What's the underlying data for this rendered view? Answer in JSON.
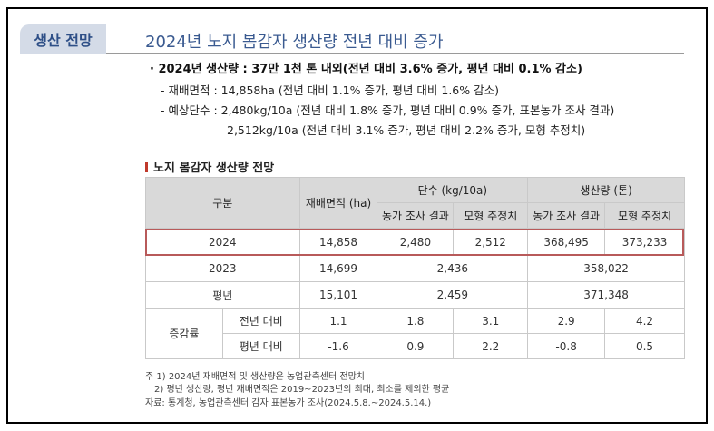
{
  "header": {
    "tag": "생산 전망",
    "title": "2024년 노지 봄감자 생산량 전년 대비 증가"
  },
  "summary": {
    "headline": "· 2024년 생산량 : 37만 1천 톤 내외(전년 대비 3.6% 증가, 평년 대비 0.1% 감소)",
    "area": "- 재배면적 : 14,858ha (전년 대비 1.1% 증가, 평년 대비 1.6% 감소)",
    "yield1": "- 예상단수 : 2,480kg/10a (전년 대비 1.8% 증가, 평년 대비 0.9% 증가, 표본농가 조사 결과)",
    "yield2": "2,512kg/10a (전년 대비 3.1% 증가, 평년 대비 2.2% 증가, 모형 추정치)"
  },
  "section_title": "노지 봄감자 생산량 전망",
  "table": {
    "h_category": "구분",
    "h_area": "재배면적 (ha)",
    "h_yield": "단수 (kg/10a)",
    "h_prod": "생산량 (톤)",
    "h_survey": "농가 조사 결과",
    "h_model": "모형 추정치",
    "r2024": {
      "label": "2024",
      "area": "14,858",
      "y_survey": "2,480",
      "y_model": "2,512",
      "p_survey": "368,495",
      "p_model": "373,233"
    },
    "r2023": {
      "label": "2023",
      "area": "14,699",
      "yield": "2,436",
      "prod": "358,022"
    },
    "avg": {
      "label": "평년",
      "area": "15,101",
      "yield": "2,459",
      "prod": "371,348"
    },
    "change": {
      "label": "증감률",
      "prev": {
        "label": "전년 대비",
        "area": "1.1",
        "y_survey": "1.8",
        "y_model": "3.1",
        "p_survey": "2.9",
        "p_model": "4.2"
      },
      "avg": {
        "label": "평년 대비",
        "area": "-1.6",
        "y_survey": "0.9",
        "y_model": "2.2",
        "p_survey": "-0.8",
        "p_model": "0.5"
      }
    }
  },
  "notes": {
    "n1": "주 1) 2024년 재배면적 및 생산량은 농업관측센터 전망치",
    "n2": "2) 평년 생산량, 평년 재배면적은 2019~2023년의 최대, 최소를 제외한 평균",
    "n3": "자료: 통계청, 농업관측센터 감자 표본농가 조사(2024.5.8.~2024.5.14.)"
  }
}
